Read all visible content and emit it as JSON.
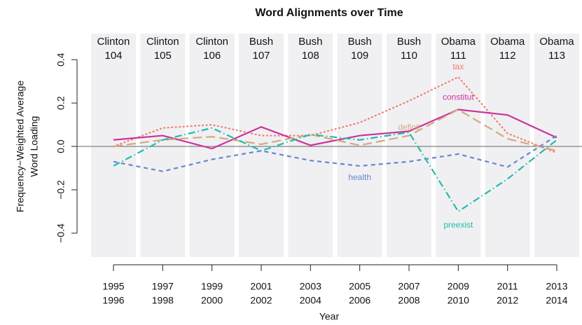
{
  "chart_data": {
    "type": "line",
    "title": "Word Alignments over Time",
    "xlabel": "Year",
    "ylabel": [
      "Frequency−Weighted Average",
      "Word Loading"
    ],
    "categories": [
      [
        "1995",
        "1996"
      ],
      [
        "1997",
        "1998"
      ],
      [
        "1999",
        "2000"
      ],
      [
        "2001",
        "2002"
      ],
      [
        "2003",
        "2004"
      ],
      [
        "2005",
        "2006"
      ],
      [
        "2007",
        "2008"
      ],
      [
        "2009",
        "2010"
      ],
      [
        "2011",
        "2012"
      ],
      [
        "2013",
        "2014"
      ]
    ],
    "congresses": [
      [
        "Clinton",
        104
      ],
      [
        "Clinton",
        105
      ],
      [
        "Clinton",
        106
      ],
      [
        "Bush",
        107
      ],
      [
        "Bush",
        108
      ],
      [
        "Bush",
        109
      ],
      [
        "Bush",
        110
      ],
      [
        "Obama",
        111
      ],
      [
        "Obama",
        112
      ],
      [
        "Obama",
        113
      ]
    ],
    "ylim": [
      -0.51,
      0.52
    ],
    "yticks": [
      {
        "value": -0.4,
        "label": "−0.4"
      },
      {
        "value": -0.2,
        "label": "−0.2"
      },
      {
        "value": 0,
        "label": "0.0"
      },
      0.2,
      0.4
    ],
    "reference_line": 0,
    "series": [
      {
        "name": "tax",
        "color": "#f07c6c",
        "linestyle": "dotted",
        "values": [
          0.0,
          0.085,
          0.1,
          0.05,
          0.05,
          0.11,
          0.21,
          0.32,
          0.06,
          -0.03
        ]
      },
      {
        "name": "constitut",
        "color": "#cc3399",
        "linestyle": "solid",
        "values": [
          0.03,
          0.05,
          -0.01,
          0.09,
          0.005,
          0.05,
          0.07,
          0.17,
          0.145,
          0.04
        ]
      },
      {
        "name": "deficit",
        "color": "#d2aa80",
        "linestyle": "longdash",
        "values": [
          0.0,
          0.03,
          0.045,
          0.01,
          0.055,
          0.005,
          0.05,
          0.17,
          0.035,
          -0.02
        ]
      },
      {
        "name": "health",
        "color": "#6688cc",
        "linestyle": "dashed",
        "values": [
          -0.07,
          -0.115,
          -0.06,
          -0.02,
          -0.065,
          -0.09,
          -0.07,
          -0.035,
          -0.095,
          0.05
        ]
      },
      {
        "name": "preexist",
        "color": "#22bbaa",
        "linestyle": "dotdash",
        "values": [
          -0.09,
          0.03,
          0.085,
          -0.02,
          0.055,
          0.03,
          0.065,
          -0.3,
          -0.15,
          0.03
        ]
      }
    ]
  }
}
